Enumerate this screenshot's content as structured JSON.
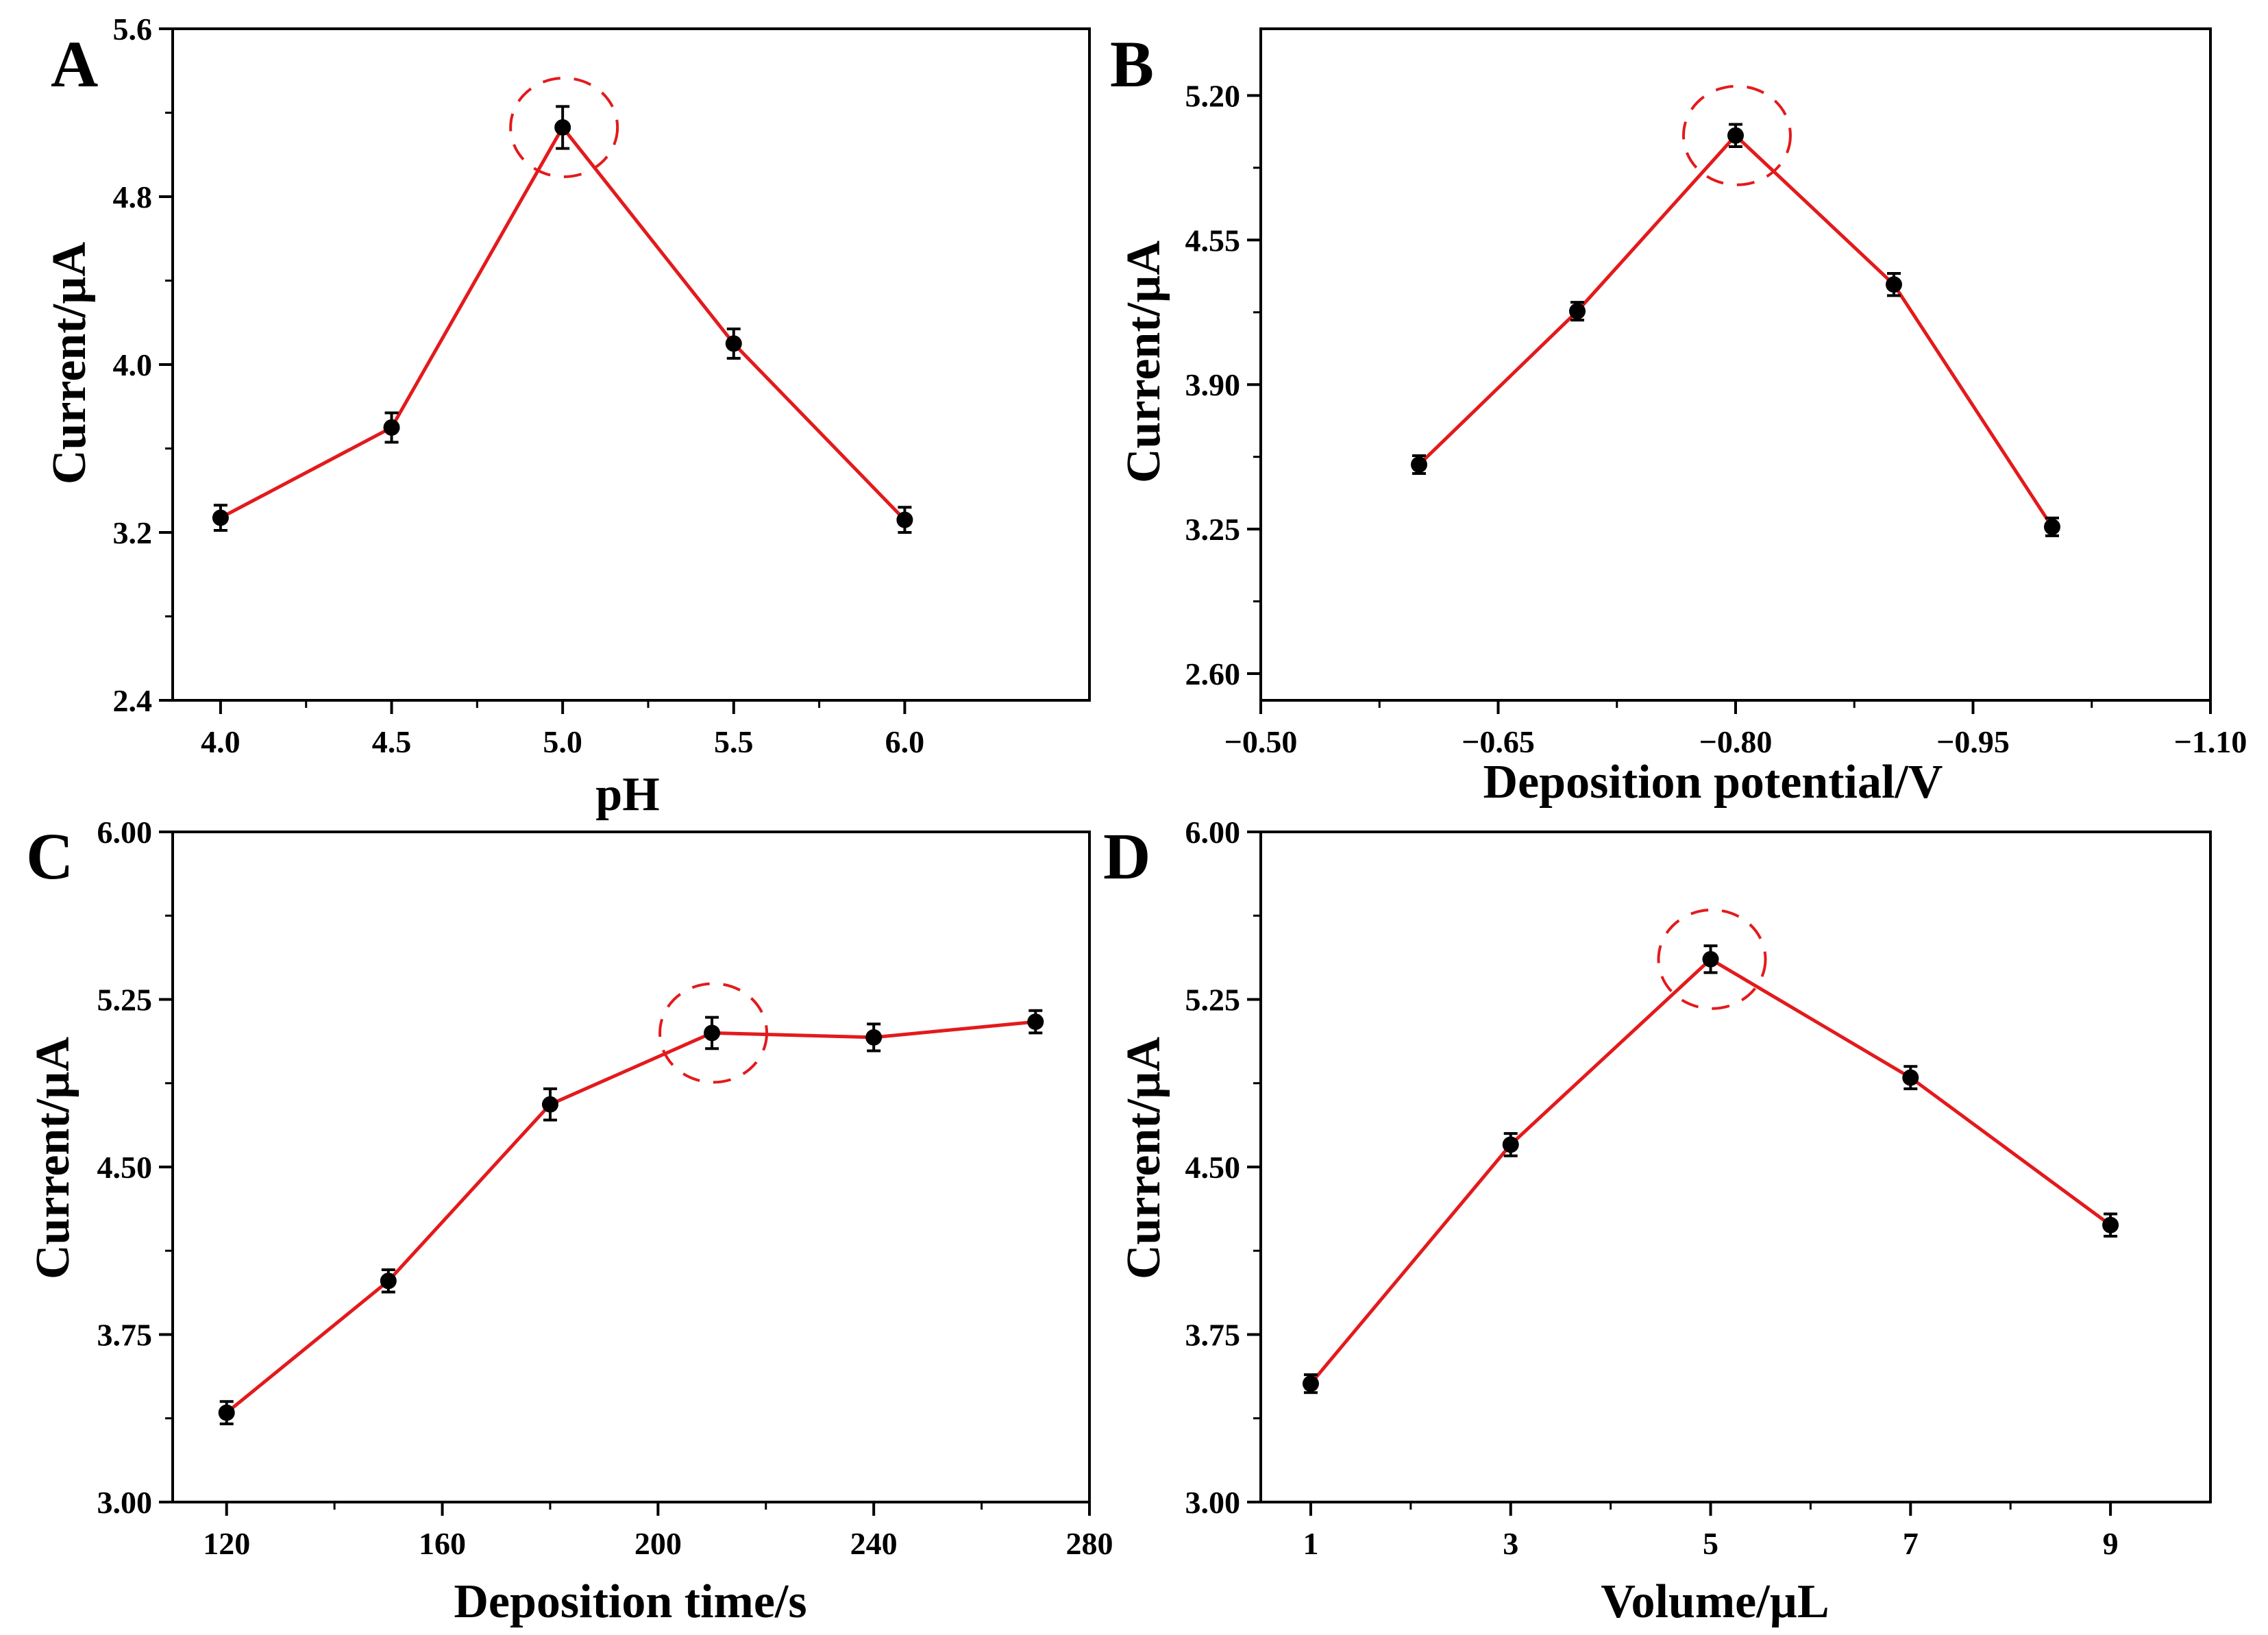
{
  "figure": {
    "colors": {
      "line": "#e31a1c",
      "marker": "#000000",
      "highlight": "#e31a1c",
      "axis": "#000000"
    }
  },
  "chart_data": [
    {
      "panel": "A",
      "type": "line",
      "xlabel": "pH",
      "ylabel": "Current/µA",
      "xlim": [
        3.86,
        6.54
      ],
      "ylim": [
        2.4,
        5.6
      ],
      "xticks": [
        4.0,
        4.5,
        5.0,
        5.5,
        6.0
      ],
      "xtick_labels": [
        "4.0",
        "4.5",
        "5.0",
        "5.5",
        "6.0"
      ],
      "yticks": [
        2.4,
        3.2,
        4.0,
        4.8,
        5.6
      ],
      "ytick_labels": [
        "2.4",
        "3.2",
        "4.0",
        "4.8",
        "5.6"
      ],
      "x": [
        4.0,
        4.5,
        5.0,
        5.5,
        6.0
      ],
      "y": [
        3.27,
        3.7,
        5.13,
        4.1,
        3.26
      ],
      "error": [
        0.06,
        0.07,
        0.1,
        0.07,
        0.06
      ],
      "highlight_index": 2
    },
    {
      "panel": "B",
      "type": "line",
      "xlabel": "Deposition potential/V",
      "ylabel": "Current/µA",
      "xlim": [
        -0.5,
        -1.1
      ],
      "ylim": [
        2.48,
        5.5
      ],
      "xticks": [
        -0.5,
        -0.65,
        -0.8,
        -0.95,
        -1.1
      ],
      "xtick_labels": [
        "−0.50",
        "−0.65",
        "−0.80",
        "−0.95",
        "−1.10"
      ],
      "yticks": [
        2.6,
        3.25,
        3.9,
        4.55,
        5.2
      ],
      "ytick_labels": [
        "2.60",
        "3.25",
        "3.90",
        "4.55",
        "5.20"
      ],
      "x": [
        -0.6,
        -0.7,
        -0.8,
        -0.9,
        -1.0
      ],
      "y": [
        3.54,
        4.23,
        5.02,
        4.35,
        3.26
      ],
      "error": [
        0.04,
        0.04,
        0.05,
        0.05,
        0.04
      ],
      "highlight_index": 2
    },
    {
      "panel": "C",
      "type": "line",
      "xlabel": "Deposition time/s",
      "ylabel": "Current/µA",
      "xlim": [
        110,
        280
      ],
      "ylim": [
        3.0,
        6.0
      ],
      "xticks": [
        120,
        160,
        200,
        240,
        280
      ],
      "xtick_labels": [
        "120",
        "160",
        "200",
        "240",
        "280"
      ],
      "yticks": [
        3.0,
        3.75,
        4.5,
        5.25,
        6.0
      ],
      "ytick_labels": [
        "3.00",
        "3.75",
        "4.50",
        "5.25",
        "6.00"
      ],
      "x": [
        120,
        150,
        180,
        210,
        240,
        270
      ],
      "y": [
        3.4,
        3.99,
        4.78,
        5.1,
        5.08,
        5.15
      ],
      "error": [
        0.05,
        0.05,
        0.07,
        0.07,
        0.06,
        0.05
      ],
      "highlight_index": 3
    },
    {
      "panel": "D",
      "type": "line",
      "xlabel": "Volume/µL",
      "ylabel": "Current/µA",
      "xlim": [
        0.5,
        10.0
      ],
      "ylim": [
        3.0,
        6.0
      ],
      "xticks": [
        1,
        3,
        5,
        7,
        9
      ],
      "xtick_labels": [
        "1",
        "3",
        "5",
        "7",
        "9"
      ],
      "yticks": [
        3.0,
        3.75,
        4.5,
        5.25,
        6.0
      ],
      "ytick_labels": [
        "3.00",
        "3.75",
        "4.50",
        "5.25",
        "6.00"
      ],
      "x": [
        1,
        3,
        5,
        7,
        9
      ],
      "y": [
        3.53,
        4.6,
        5.43,
        4.9,
        4.24
      ],
      "error": [
        0.04,
        0.05,
        0.06,
        0.05,
        0.05
      ],
      "highlight_index": 2
    }
  ]
}
